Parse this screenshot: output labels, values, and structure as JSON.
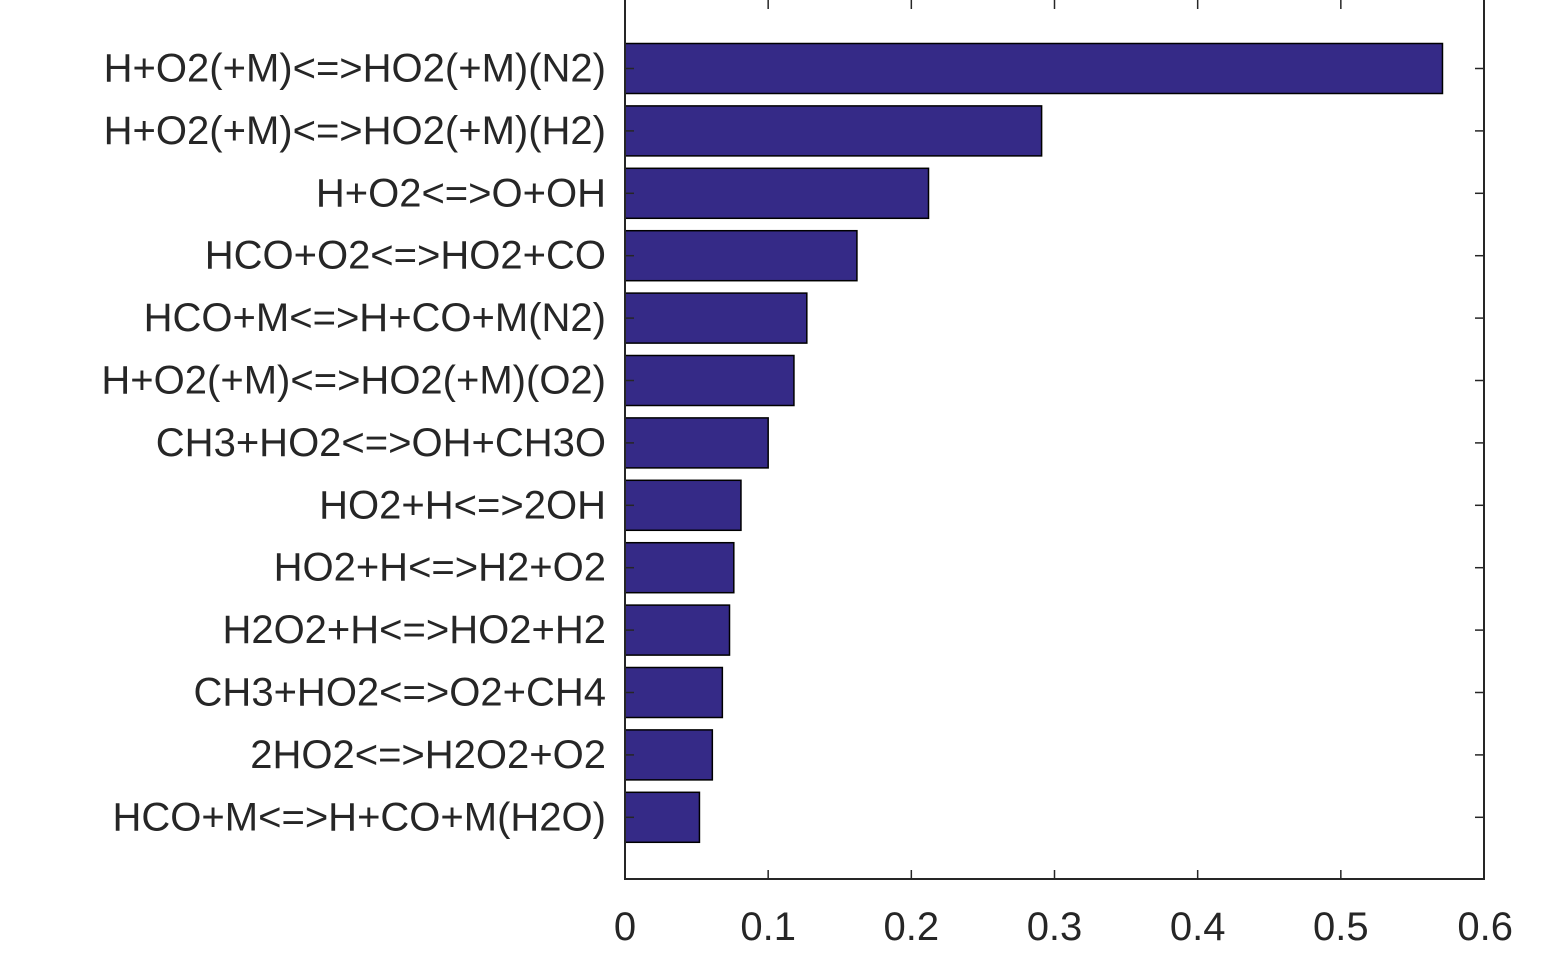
{
  "chart_data": {
    "type": "bar",
    "orientation": "horizontal",
    "categories": [
      "H+O2(+M)<=>HO2(+M)(N2)",
      "H+O2(+M)<=>HO2(+M)(H2)",
      "H+O2<=>O+OH",
      "HCO+O2<=>HO2+CO",
      "HCO+M<=>H+CO+M(N2)",
      "H+O2(+M)<=>HO2(+M)(O2)",
      "CH3+HO2<=>OH+CH3O",
      "HO2+H<=>2OH",
      "HO2+H<=>H2+O2",
      "H2O2+H<=>HO2+H2",
      "CH3+HO2<=>O2+CH4",
      "2HO2<=>H2O2+O2",
      "HCO+M<=>H+CO+M(H2O)"
    ],
    "values": [
      0.571,
      0.291,
      0.212,
      0.162,
      0.127,
      0.118,
      0.1,
      0.081,
      0.076,
      0.073,
      0.068,
      0.061,
      0.052
    ],
    "xlim": [
      0,
      0.6
    ],
    "xticks": [
      "0",
      "0.1",
      "0.2",
      "0.3",
      "0.4",
      "0.5",
      "0.6"
    ],
    "bar_color": "#352a87",
    "title": "",
    "xlabel": "",
    "ylabel": "",
    "grid": false,
    "legend": "none"
  }
}
